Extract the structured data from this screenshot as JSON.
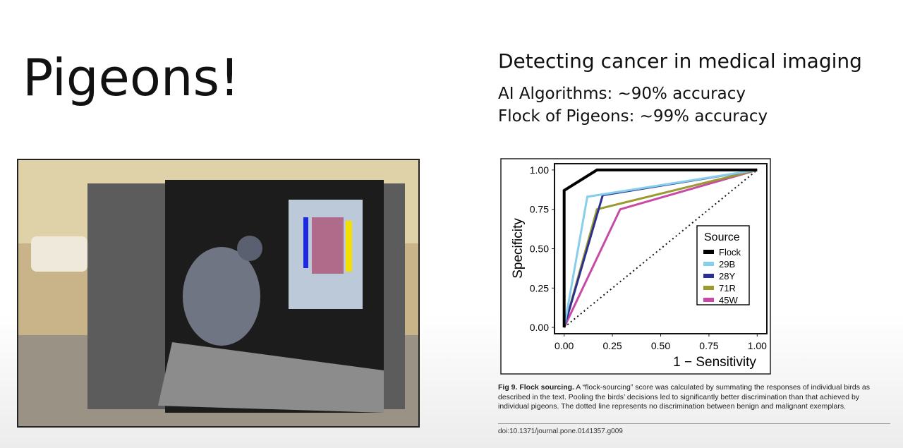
{
  "slide": {
    "title": "Pigeons!",
    "heading": "Detecting cancer in medical imaging",
    "lines": [
      "AI Algorithms: ~90% accuracy",
      "Flock of Pigeons: ~99% accuracy"
    ],
    "caption": {
      "label": "Fig 9. Flock sourcing.",
      "text": "A “flock-sourcing” score was calculated by summating the responses of individual birds as described in the text. Pooling the birds’ decisions led to significantly better discrimination than that achieved by individual pigeons. The dotted line represents no discrimination between benign and malignant exemplars."
    },
    "doi": "doi:10.1371/journal.pone.0141357.g009"
  },
  "chart_data": {
    "type": "line",
    "xlabel": "1 − Sensitivity",
    "ylabel": "Specificity",
    "legend_title": "Source",
    "legend": "right",
    "xlim": [
      -0.05,
      1.05
    ],
    "ylim": [
      -0.04,
      1.04
    ],
    "xticks": [
      {
        "value": 0,
        "label": "0.00"
      },
      {
        "value": 0.25,
        "label": "0.25"
      },
      {
        "value": 0.5,
        "label": "0.50"
      },
      {
        "value": 0.75,
        "label": "0.75"
      },
      {
        "value": 1,
        "label": "1.00"
      }
    ],
    "yticks": [
      {
        "value": 0,
        "label": "0.00"
      },
      {
        "value": 0.25,
        "label": "0.25"
      },
      {
        "value": 0.5,
        "label": "0.50"
      },
      {
        "value": 0.75,
        "label": "0.75"
      },
      {
        "value": 1,
        "label": "1.00"
      }
    ],
    "series": [
      {
        "name": "Flock",
        "color": "#000000",
        "x": [
          0,
          0,
          0.17,
          1
        ],
        "values": [
          0,
          0.87,
          1,
          1
        ]
      },
      {
        "name": "29B",
        "color": "#87ceeb",
        "x": [
          0,
          0.12,
          1
        ],
        "values": [
          0,
          0.83,
          1
        ]
      },
      {
        "name": "28Y",
        "color": "#2b2f8f",
        "x": [
          0,
          0.2,
          1
        ],
        "values": [
          0,
          0.84,
          1
        ]
      },
      {
        "name": "71R",
        "color": "#9a9a2e",
        "x": [
          0,
          0.17,
          1
        ],
        "values": [
          0,
          0.75,
          1
        ]
      },
      {
        "name": "45W",
        "color": "#c74aa6",
        "x": [
          0,
          0.29,
          1
        ],
        "values": [
          0,
          0.75,
          1
        ]
      }
    ]
  }
}
